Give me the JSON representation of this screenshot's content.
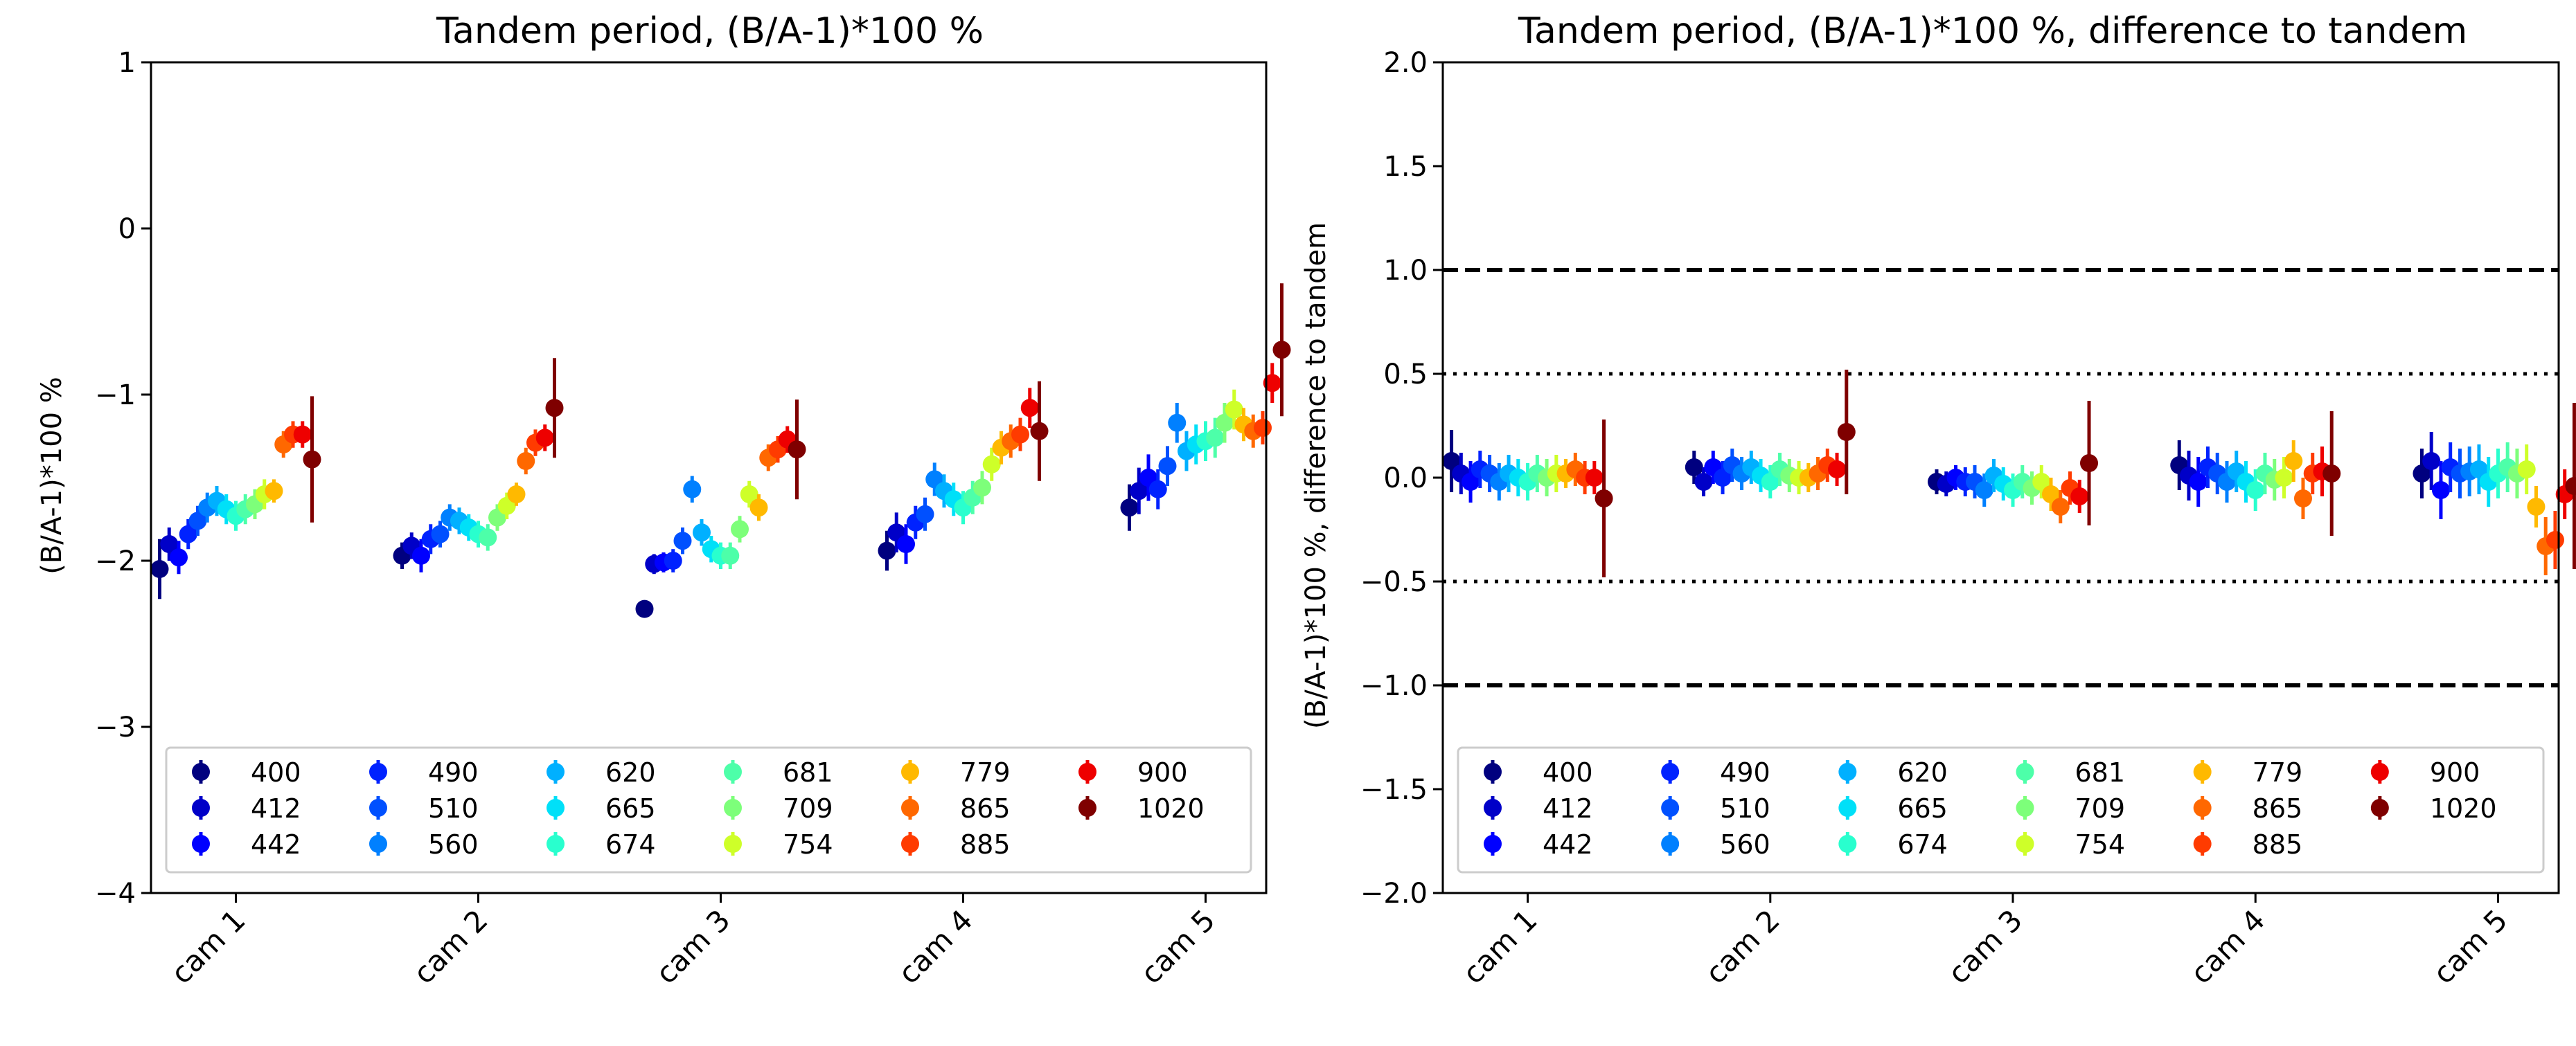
{
  "chart_data": [
    {
      "type": "scatter",
      "title": "Tandem period, (B/A-1)*100 %",
      "xlabel": "",
      "ylabel": "(B/A-1)*100 %",
      "categories": [
        "cam 1",
        "cam 2",
        "cam 3",
        "cam 4",
        "cam 5"
      ],
      "ylim": [
        -4,
        1
      ],
      "yticks": [
        1,
        0,
        -1,
        -2,
        -3,
        -4
      ],
      "ytick_labels": [
        "1",
        "0",
        "−1",
        "−2",
        "−3",
        "−4"
      ],
      "legend_position": "lower center",
      "series": [
        {
          "name": "400",
          "color": "#00007f",
          "values": [
            -2.05,
            -1.97,
            -2.29,
            -1.94,
            -1.68
          ],
          "err": [
            0.18,
            0.08,
            0.05,
            0.12,
            0.14
          ]
        },
        {
          "name": "412",
          "color": "#0000c8",
          "values": [
            -1.9,
            -1.91,
            -2.02,
            -1.83,
            -1.58
          ],
          "err": [
            0.1,
            0.08,
            0.06,
            0.12,
            0.14
          ]
        },
        {
          "name": "442",
          "color": "#0000ff",
          "values": [
            -1.98,
            -1.97,
            -2.01,
            -1.9,
            -1.5
          ],
          "err": [
            0.1,
            0.1,
            0.06,
            0.12,
            0.14
          ]
        },
        {
          "name": "490",
          "color": "#0022ff",
          "values": [
            -1.84,
            -1.87,
            -2.0,
            -1.77,
            -1.57
          ],
          "err": [
            0.09,
            0.09,
            0.07,
            0.1,
            0.12
          ]
        },
        {
          "name": "510",
          "color": "#0050ff",
          "values": [
            -1.76,
            -1.84,
            -1.88,
            -1.72,
            -1.43
          ],
          "err": [
            0.09,
            0.08,
            0.08,
            0.1,
            0.12
          ]
        },
        {
          "name": "560",
          "color": "#0080ff",
          "values": [
            -1.68,
            -1.74,
            -1.57,
            -1.51,
            -1.17
          ],
          "err": [
            0.09,
            0.08,
            0.08,
            0.1,
            0.12
          ]
        },
        {
          "name": "620",
          "color": "#00b0ff",
          "values": [
            -1.64,
            -1.76,
            -1.83,
            -1.58,
            -1.34
          ],
          "err": [
            0.09,
            0.08,
            0.08,
            0.1,
            0.12
          ]
        },
        {
          "name": "665",
          "color": "#00e0f8",
          "values": [
            -1.69,
            -1.8,
            -1.93,
            -1.63,
            -1.3
          ],
          "err": [
            0.09,
            0.08,
            0.08,
            0.1,
            0.12
          ]
        },
        {
          "name": "674",
          "color": "#29ffce",
          "values": [
            -1.73,
            -1.84,
            -1.97,
            -1.68,
            -1.28
          ],
          "err": [
            0.09,
            0.08,
            0.08,
            0.1,
            0.12
          ]
        },
        {
          "name": "681",
          "color": "#4dffa9",
          "values": [
            -1.69,
            -1.86,
            -1.97,
            -1.62,
            -1.26
          ],
          "err": [
            0.09,
            0.08,
            0.08,
            0.1,
            0.12
          ]
        },
        {
          "name": "709",
          "color": "#7dff7a",
          "values": [
            -1.66,
            -1.74,
            -1.81,
            -1.56,
            -1.17
          ],
          "err": [
            0.09,
            0.08,
            0.08,
            0.1,
            0.12
          ]
        },
        {
          "name": "754",
          "color": "#ceff29",
          "values": [
            -1.6,
            -1.67,
            -1.6,
            -1.42,
            -1.09
          ],
          "err": [
            0.09,
            0.08,
            0.08,
            0.1,
            0.12
          ]
        },
        {
          "name": "779",
          "color": "#ffb900",
          "values": [
            -1.58,
            -1.6,
            -1.68,
            -1.32,
            -1.18
          ],
          "err": [
            0.07,
            0.07,
            0.08,
            0.1,
            0.1
          ]
        },
        {
          "name": "865",
          "color": "#ff6800",
          "values": [
            -1.3,
            -1.4,
            -1.38,
            -1.28,
            -1.22
          ],
          "err": [
            0.08,
            0.08,
            0.08,
            0.1,
            0.1
          ]
        },
        {
          "name": "885",
          "color": "#ff3b00",
          "values": [
            -1.24,
            -1.29,
            -1.33,
            -1.24,
            -1.2
          ],
          "err": [
            0.08,
            0.08,
            0.08,
            0.1,
            0.1
          ]
        },
        {
          "name": "900",
          "color": "#ee0000",
          "values": [
            -1.24,
            -1.26,
            -1.27,
            -1.08,
            -0.93
          ],
          "err": [
            0.08,
            0.08,
            0.08,
            0.12,
            0.12
          ]
        },
        {
          "name": "1020",
          "color": "#7f0000",
          "values": [
            -1.39,
            -1.08,
            -1.33,
            -1.22,
            -0.73
          ],
          "err": [
            0.38,
            0.3,
            0.3,
            0.3,
            0.4
          ]
        }
      ]
    },
    {
      "type": "scatter",
      "title": "Tandem period, (B/A-1)*100 %, difference to tandem",
      "xlabel": "",
      "ylabel": "(B/A-1)*100 %, difference to tandem",
      "categories": [
        "cam 1",
        "cam 2",
        "cam 3",
        "cam 4",
        "cam 5"
      ],
      "ylim": [
        -2.0,
        2.0
      ],
      "yticks": [
        2.0,
        1.5,
        1.0,
        0.5,
        0.0,
        -0.5,
        -1.0,
        -1.5,
        -2.0
      ],
      "ytick_labels": [
        "2.0",
        "1.5",
        "1.0",
        "0.5",
        "0.0",
        "−0.5",
        "−1.0",
        "−1.5",
        "−2.0"
      ],
      "reference_lines": [
        {
          "y": 1.0,
          "style": "dashed"
        },
        {
          "y": -1.0,
          "style": "dashed"
        },
        {
          "y": 0.5,
          "style": "dotted"
        },
        {
          "y": -0.5,
          "style": "dotted"
        }
      ],
      "legend_position": "lower center",
      "series": [
        {
          "name": "400",
          "color": "#00007f",
          "values": [
            0.08,
            0.05,
            -0.02,
            0.06,
            0.02
          ],
          "err": [
            0.15,
            0.08,
            0.06,
            0.12,
            0.12
          ]
        },
        {
          "name": "412",
          "color": "#0000c8",
          "values": [
            0.02,
            -0.02,
            -0.03,
            0.01,
            0.08
          ],
          "err": [
            0.1,
            0.07,
            0.06,
            0.12,
            0.14
          ]
        },
        {
          "name": "442",
          "color": "#0000ff",
          "values": [
            -0.02,
            0.05,
            0.0,
            -0.02,
            -0.06
          ],
          "err": [
            0.1,
            0.08,
            0.06,
            0.12,
            0.14
          ]
        },
        {
          "name": "490",
          "color": "#0022ff",
          "values": [
            0.04,
            0.0,
            -0.02,
            0.05,
            0.05
          ],
          "err": [
            0.09,
            0.08,
            0.07,
            0.1,
            0.12
          ]
        },
        {
          "name": "510",
          "color": "#0050ff",
          "values": [
            0.02,
            0.06,
            -0.02,
            0.02,
            0.02
          ],
          "err": [
            0.09,
            0.08,
            0.08,
            0.1,
            0.12
          ]
        },
        {
          "name": "560",
          "color": "#0080ff",
          "values": [
            -0.02,
            0.02,
            -0.06,
            -0.02,
            0.03
          ],
          "err": [
            0.09,
            0.08,
            0.08,
            0.1,
            0.12
          ]
        },
        {
          "name": "620",
          "color": "#00b0ff",
          "values": [
            0.02,
            0.05,
            0.01,
            0.03,
            0.04
          ],
          "err": [
            0.09,
            0.08,
            0.08,
            0.1,
            0.12
          ]
        },
        {
          "name": "665",
          "color": "#00e0f8",
          "values": [
            0.0,
            0.01,
            -0.03,
            -0.02,
            -0.02
          ],
          "err": [
            0.09,
            0.08,
            0.08,
            0.1,
            0.12
          ]
        },
        {
          "name": "674",
          "color": "#29ffce",
          "values": [
            -0.02,
            -0.02,
            -0.06,
            -0.06,
            0.02
          ],
          "err": [
            0.09,
            0.08,
            0.08,
            0.1,
            0.12
          ]
        },
        {
          "name": "681",
          "color": "#4dffa9",
          "values": [
            0.02,
            0.04,
            -0.02,
            0.02,
            0.05
          ],
          "err": [
            0.09,
            0.08,
            0.08,
            0.1,
            0.12
          ]
        },
        {
          "name": "709",
          "color": "#7dff7a",
          "values": [
            0.0,
            0.01,
            -0.05,
            -0.01,
            0.02
          ],
          "err": [
            0.09,
            0.08,
            0.08,
            0.1,
            0.12
          ]
        },
        {
          "name": "754",
          "color": "#ceff29",
          "values": [
            0.02,
            0.0,
            -0.02,
            0.0,
            0.04
          ],
          "err": [
            0.09,
            0.08,
            0.08,
            0.1,
            0.12
          ]
        },
        {
          "name": "779",
          "color": "#ffb900",
          "values": [
            0.02,
            0.0,
            -0.08,
            0.08,
            -0.14
          ],
          "err": [
            0.07,
            0.07,
            0.08,
            0.1,
            0.1
          ]
        },
        {
          "name": "865",
          "color": "#ff6800",
          "values": [
            0.04,
            0.02,
            -0.14,
            -0.1,
            -0.33
          ],
          "err": [
            0.08,
            0.08,
            0.08,
            0.1,
            0.14
          ]
        },
        {
          "name": "885",
          "color": "#ff3b00",
          "values": [
            0.0,
            0.06,
            -0.05,
            0.02,
            -0.3
          ],
          "err": [
            0.08,
            0.08,
            0.08,
            0.1,
            0.14
          ]
        },
        {
          "name": "900",
          "color": "#ee0000",
          "values": [
            0.0,
            0.04,
            -0.09,
            0.03,
            -0.08
          ],
          "err": [
            0.08,
            0.08,
            0.08,
            0.12,
            0.12
          ]
        },
        {
          "name": "1020",
          "color": "#7f0000",
          "values": [
            -0.1,
            0.22,
            0.07,
            0.02,
            -0.04
          ],
          "err": [
            0.38,
            0.3,
            0.3,
            0.3,
            0.4
          ]
        }
      ]
    }
  ]
}
